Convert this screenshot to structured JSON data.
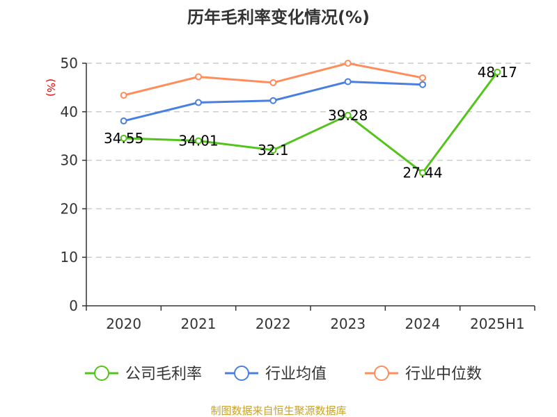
{
  "chart_data": {
    "type": "line",
    "title": "历年毛利率变化情况(%)",
    "ylabel": "(%)",
    "categories": [
      "2020",
      "2021",
      "2022",
      "2023",
      "2024",
      "2025H1"
    ],
    "ylim": [
      0,
      50
    ],
    "yticks": [
      0,
      10,
      20,
      30,
      40,
      50
    ],
    "grid": true,
    "legend_position": "bottom",
    "series": [
      {
        "name": "公司毛利率",
        "color": "#52c41a",
        "values": [
          34.55,
          34.01,
          32.1,
          39.28,
          27.44,
          48.17
        ],
        "labels": [
          "34.55",
          "34.01",
          "32.1",
          "39.28",
          "27.44",
          "48.17"
        ]
      },
      {
        "name": "行业均值",
        "color": "#4a7fe0",
        "values": [
          38.1,
          41.9,
          42.3,
          46.2,
          45.6,
          null
        ]
      },
      {
        "name": "行业中位数",
        "color": "#ff8c5a",
        "values": [
          43.4,
          47.2,
          46.0,
          50.0,
          47.0,
          null
        ]
      }
    ]
  },
  "source": "制图数据来自恒生聚源数据库"
}
